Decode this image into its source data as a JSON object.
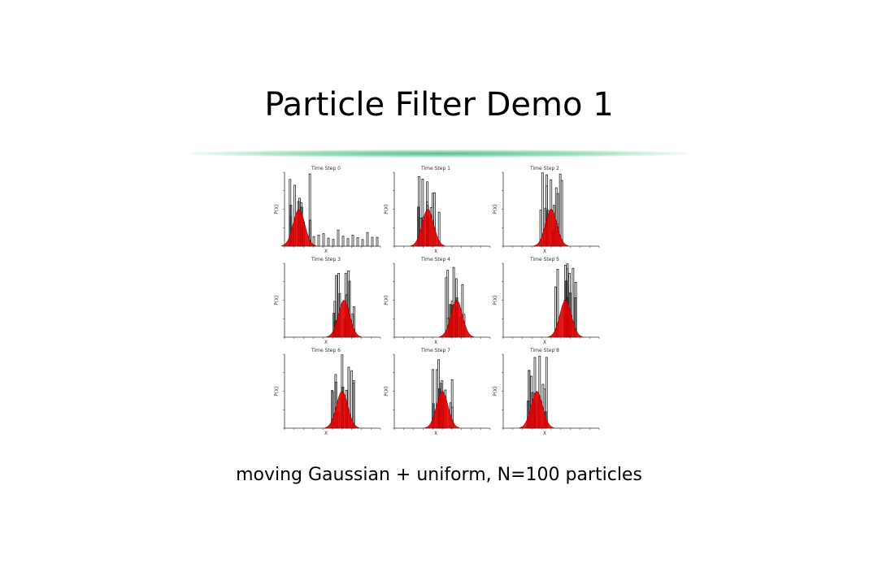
{
  "header": {
    "title": "Particle Filter Demo 1"
  },
  "figure": {
    "panels": [
      {
        "title": "Time Step 0",
        "ylabel": "P(X)",
        "xlabel": "X"
      },
      {
        "title": "Time Step 1",
        "ylabel": "P(X)",
        "xlabel": "X"
      },
      {
        "title": "Time Step 2",
        "ylabel": "P(X)",
        "xlabel": "X"
      },
      {
        "title": "Time Step 3",
        "ylabel": "P(X)",
        "xlabel": "X"
      },
      {
        "title": "Time Step 4",
        "ylabel": "P(X)",
        "xlabel": "X"
      },
      {
        "title": "Time Step 5",
        "ylabel": "P(X)",
        "xlabel": "X"
      },
      {
        "title": "Time Step 6",
        "ylabel": "P(X)",
        "xlabel": "X"
      },
      {
        "title": "Time Step 7",
        "ylabel": "P(X)",
        "xlabel": "X"
      },
      {
        "title": "Time Step 8",
        "ylabel": "P(X)",
        "xlabel": "X"
      }
    ]
  },
  "caption": "moving Gaussian + uniform, N=100 particles"
}
